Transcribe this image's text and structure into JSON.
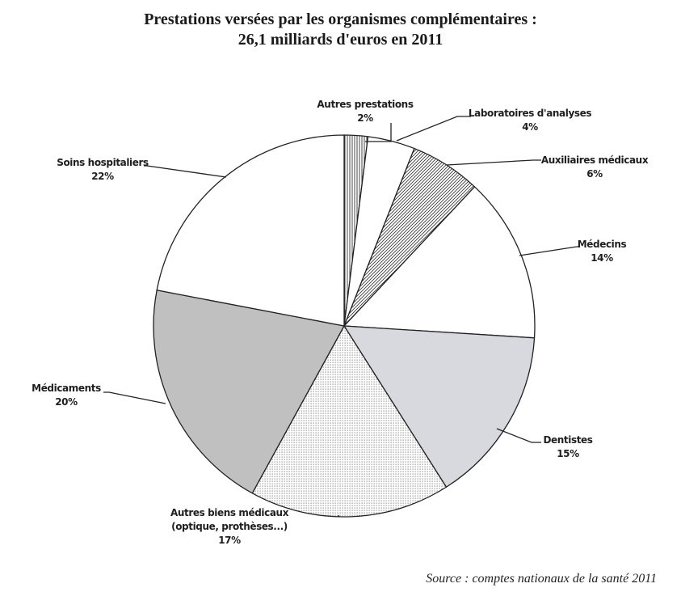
{
  "chart_data": {
    "type": "pie",
    "title_line1": "Prestations versées par les organismes complémentaires :",
    "title_line2": "26,1 milliards d'euros en 2011",
    "source": "Source : comptes nationaux de la santé 2011",
    "slices": [
      {
        "name": "Autres prestations",
        "value": 2,
        "value_label": "2%",
        "pattern": "vertical-lines"
      },
      {
        "name": "Laboratoires d'analyses",
        "value": 4,
        "value_label": "4%",
        "pattern": "white"
      },
      {
        "name": "Auxiliaires médicaux",
        "value": 6,
        "value_label": "6%",
        "pattern": "diagonal-hatch"
      },
      {
        "name": "Médecins",
        "value": 14,
        "value_label": "14%",
        "pattern": "white"
      },
      {
        "name": "Dentistes",
        "value": 15,
        "value_label": "15%",
        "pattern": "light-gray"
      },
      {
        "name": "Autres biens médicaux",
        "name_line2": "(optique, prothèses...)",
        "value": 17,
        "value_label": "17%",
        "pattern": "dots"
      },
      {
        "name": "Médicaments",
        "value": 20,
        "value_label": "20%",
        "pattern": "gray"
      },
      {
        "name": "Soins hospitaliers",
        "value": 22,
        "value_label": "22%",
        "pattern": "white"
      }
    ],
    "colors": {
      "light_gray": "#d8d9de",
      "gray": "#c0c0c0",
      "outline": "#222222"
    }
  }
}
